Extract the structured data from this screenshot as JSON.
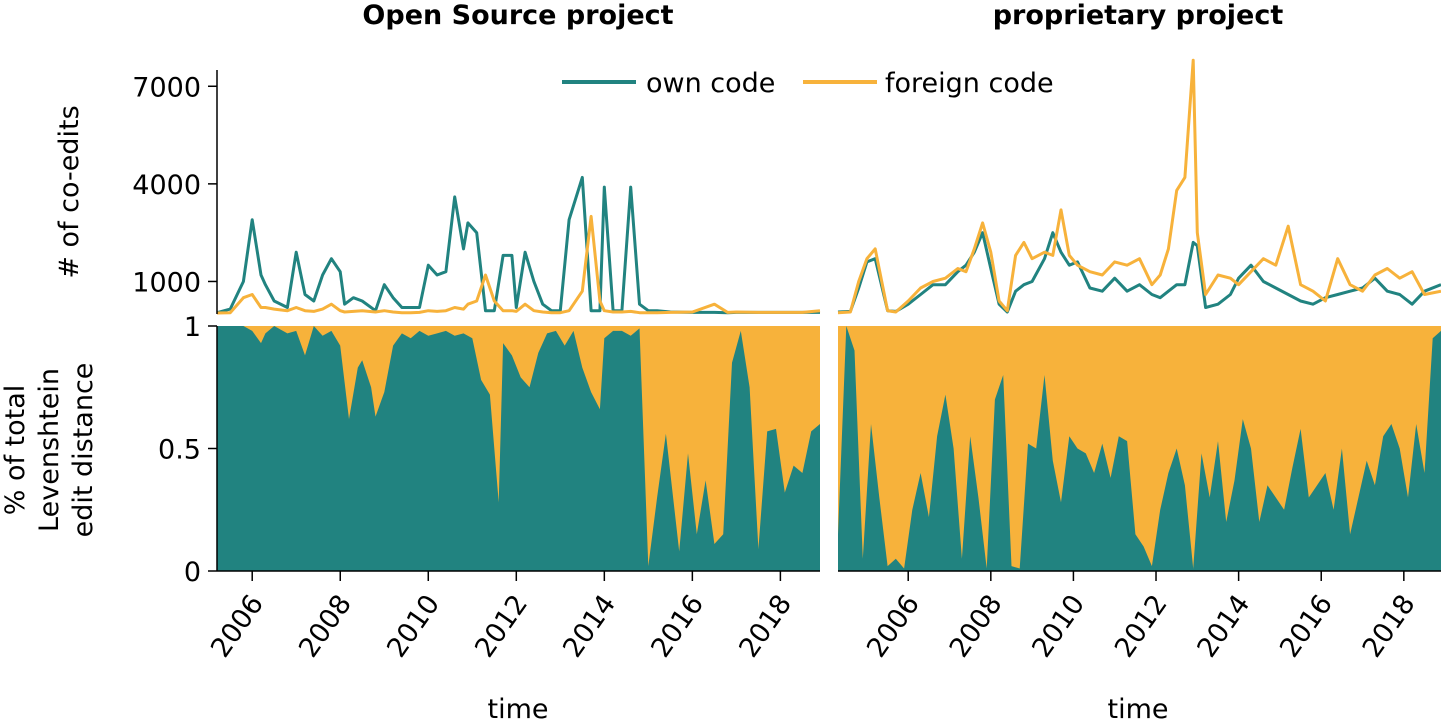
{
  "colors": {
    "own": "#218380",
    "foreign": "#f7b23b"
  },
  "legend": {
    "own_label": "own code",
    "foreign_label": "foreign code"
  },
  "x_axis_label": "time",
  "top_ylabel": "# of co-edits",
  "bottom_ylabel_lines": [
    "% of total",
    "Levenshtein",
    "edit distance"
  ],
  "chart_data": [
    {
      "type": "line",
      "title": "Open Source project",
      "xlabel": "time",
      "ylabel": "# of co-edits",
      "ylim": [
        0,
        7500
      ],
      "yticks": [
        1000,
        4000,
        7000
      ],
      "xlim": [
        2005.2,
        2018.9
      ],
      "xticks": [
        2006,
        2008,
        2010,
        2012,
        2014,
        2016,
        2018
      ],
      "x": [
        2005.2,
        2005.5,
        2005.8,
        2006.0,
        2006.2,
        2006.3,
        2006.5,
        2006.8,
        2007.0,
        2007.2,
        2007.4,
        2007.6,
        2007.8,
        2008.0,
        2008.1,
        2008.3,
        2008.5,
        2008.8,
        2009.0,
        2009.2,
        2009.4,
        2009.6,
        2009.8,
        2010.0,
        2010.2,
        2010.4,
        2010.6,
        2010.8,
        2010.9,
        2011.1,
        2011.3,
        2011.5,
        2011.7,
        2011.9,
        2012.0,
        2012.2,
        2012.4,
        2012.6,
        2012.8,
        2013.0,
        2013.2,
        2013.5,
        2013.7,
        2013.9,
        2014.0,
        2014.2,
        2014.4,
        2014.6,
        2014.8,
        2015.0,
        2015.2,
        2015.5,
        2016.0,
        2016.5,
        2016.8,
        2017.0,
        2017.5,
        2018.0,
        2018.5,
        2018.9
      ],
      "series": [
        {
          "name": "own code",
          "values": [
            40,
            150,
            1000,
            2900,
            1200,
            900,
            400,
            200,
            1900,
            600,
            400,
            1200,
            1700,
            1300,
            300,
            500,
            400,
            100,
            900,
            500,
            200,
            200,
            200,
            1500,
            1200,
            1300,
            3600,
            2000,
            2800,
            2500,
            100,
            100,
            1800,
            1800,
            200,
            1900,
            1000,
            300,
            100,
            100,
            2900,
            4200,
            100,
            100,
            3900,
            100,
            100,
            3900,
            300,
            100,
            100,
            60,
            50,
            50,
            40,
            50,
            50,
            50,
            50,
            50
          ]
        },
        {
          "name": "foreign code",
          "values": [
            30,
            40,
            500,
            600,
            200,
            200,
            150,
            100,
            200,
            100,
            80,
            150,
            300,
            100,
            60,
            80,
            100,
            60,
            100,
            60,
            40,
            40,
            50,
            100,
            80,
            100,
            200,
            150,
            300,
            400,
            1200,
            400,
            100,
            100,
            80,
            300,
            100,
            60,
            40,
            40,
            100,
            700,
            3000,
            400,
            100,
            60,
            60,
            80,
            40,
            40,
            40,
            50,
            60,
            300,
            50,
            60,
            50,
            50,
            50,
            100
          ]
        }
      ]
    },
    {
      "type": "line",
      "title": "proprietary project",
      "xlabel": "time",
      "ylabel": "# of co-edits",
      "ylim": [
        0,
        7500
      ],
      "yticks": [
        1000,
        4000,
        7000
      ],
      "xlim": [
        2004.3,
        2018.9
      ],
      "xticks": [
        2006,
        2008,
        2010,
        2012,
        2014,
        2016,
        2018
      ],
      "x": [
        2004.3,
        2004.6,
        2004.8,
        2005.0,
        2005.2,
        2005.5,
        2005.7,
        2006.0,
        2006.3,
        2006.6,
        2006.9,
        2007.2,
        2007.4,
        2007.6,
        2007.8,
        2008.0,
        2008.2,
        2008.4,
        2008.6,
        2008.8,
        2009.0,
        2009.3,
        2009.5,
        2009.7,
        2009.9,
        2010.1,
        2010.4,
        2010.7,
        2011.0,
        2011.3,
        2011.6,
        2011.9,
        2012.1,
        2012.3,
        2012.5,
        2012.7,
        2012.9,
        2013.0,
        2013.2,
        2013.5,
        2013.8,
        2014.0,
        2014.3,
        2014.6,
        2014.9,
        2015.2,
        2015.5,
        2015.8,
        2016.1,
        2016.4,
        2016.7,
        2017.0,
        2017.3,
        2017.6,
        2017.9,
        2018.2,
        2018.5,
        2018.9
      ],
      "series": [
        {
          "name": "own code",
          "values": [
            60,
            80,
            800,
            1600,
            1700,
            100,
            80,
            300,
            600,
            900,
            900,
            1300,
            1500,
            1900,
            2500,
            1400,
            300,
            60,
            700,
            900,
            1000,
            1700,
            2500,
            1900,
            1500,
            1600,
            800,
            700,
            1100,
            700,
            900,
            600,
            500,
            700,
            900,
            900,
            2200,
            2100,
            200,
            300,
            600,
            1100,
            1500,
            1000,
            800,
            600,
            400,
            300,
            500,
            600,
            700,
            800,
            1100,
            700,
            600,
            300,
            700,
            900
          ]
        },
        {
          "name": "foreign code",
          "values": [
            40,
            60,
            1000,
            1700,
            2000,
            100,
            60,
            400,
            800,
            1000,
            1100,
            1400,
            1300,
            2000,
            2800,
            1900,
            400,
            100,
            1800,
            2200,
            1700,
            1900,
            1800,
            3200,
            1800,
            1500,
            1300,
            1200,
            1600,
            1500,
            1700,
            900,
            1200,
            2000,
            3800,
            4200,
            7800,
            2500,
            600,
            1200,
            1100,
            900,
            1300,
            1700,
            1500,
            2700,
            900,
            700,
            400,
            1700,
            900,
            700,
            1200,
            1400,
            1100,
            1300,
            600,
            700
          ]
        }
      ]
    },
    {
      "type": "area",
      "title": "",
      "xlabel": "time",
      "ylabel": "% of total Levenshtein edit distance",
      "ylim": [
        0,
        1
      ],
      "yticks": [
        0,
        0.5,
        1
      ],
      "xlim": [
        2005.2,
        2018.9
      ],
      "xticks": [
        2006,
        2008,
        2010,
        2012,
        2014,
        2016,
        2018
      ],
      "stacked": true,
      "x": [
        2005.2,
        2005.5,
        2005.8,
        2006.0,
        2006.2,
        2006.3,
        2006.5,
        2006.8,
        2007.0,
        2007.2,
        2007.4,
        2007.6,
        2007.8,
        2008.0,
        2008.2,
        2008.4,
        2008.5,
        2008.7,
        2008.8,
        2009.0,
        2009.2,
        2009.4,
        2009.6,
        2009.8,
        2010.0,
        2010.2,
        2010.4,
        2010.6,
        2010.8,
        2011.0,
        2011.2,
        2011.4,
        2011.6,
        2011.7,
        2011.9,
        2012.1,
        2012.3,
        2012.5,
        2012.7,
        2012.9,
        2013.1,
        2013.3,
        2013.5,
        2013.7,
        2013.9,
        2014.0,
        2014.2,
        2014.4,
        2014.6,
        2014.8,
        2015.0,
        2015.2,
        2015.4,
        2015.7,
        2015.9,
        2016.1,
        2016.3,
        2016.5,
        2016.7,
        2016.9,
        2017.1,
        2017.3,
        2017.5,
        2017.7,
        2017.9,
        2018.1,
        2018.3,
        2018.5,
        2018.7,
        2018.9
      ],
      "series": [
        {
          "name": "own code",
          "values": [
            1,
            1,
            1,
            0.98,
            0.93,
            0.97,
            1,
            0.97,
            0.98,
            0.88,
            1,
            0.96,
            0.98,
            0.92,
            0.62,
            0.83,
            0.86,
            0.75,
            0.63,
            0.73,
            0.92,
            0.97,
            0.95,
            0.98,
            0.96,
            0.97,
            0.98,
            0.96,
            0.97,
            0.95,
            0.78,
            0.72,
            0.28,
            0.93,
            0.88,
            0.79,
            0.75,
            0.89,
            0.97,
            0.98,
            0.92,
            0.98,
            0.83,
            0.73,
            0.66,
            0.95,
            0.98,
            0.98,
            0.96,
            0.99,
            0.02,
            0.3,
            0.56,
            0.08,
            0.48,
            0.15,
            0.37,
            0.11,
            0.15,
            0.85,
            0.98,
            0.75,
            0.09,
            0.57,
            0.58,
            0.32,
            0.43,
            0.4,
            0.57,
            0.6
          ]
        },
        {
          "name": "foreign code",
          "values": [
            0,
            0,
            0,
            0.02,
            0.07,
            0.03,
            0,
            0.03,
            0.02,
            0.12,
            0,
            0.04,
            0.02,
            0.08,
            0.38,
            0.17,
            0.14,
            0.25,
            0.37,
            0.27,
            0.08,
            0.03,
            0.05,
            0.02,
            0.04,
            0.03,
            0.02,
            0.04,
            0.03,
            0.05,
            0.22,
            0.28,
            0.72,
            0.07,
            0.12,
            0.21,
            0.25,
            0.11,
            0.03,
            0.02,
            0.08,
            0.02,
            0.17,
            0.27,
            0.34,
            0.05,
            0.02,
            0.02,
            0.04,
            0.01,
            0.98,
            0.7,
            0.44,
            0.92,
            0.52,
            0.85,
            0.63,
            0.89,
            0.85,
            0.15,
            0.02,
            0.25,
            0.91,
            0.43,
            0.42,
            0.68,
            0.57,
            0.6,
            0.43,
            0.4
          ]
        }
      ]
    },
    {
      "type": "area",
      "title": "",
      "xlabel": "time",
      "ylabel": "% of total Levenshtein edit distance",
      "ylim": [
        0,
        1
      ],
      "yticks": [
        0,
        0.5,
        1
      ],
      "xlim": [
        2004.3,
        2018.9
      ],
      "xticks": [
        2006,
        2008,
        2010,
        2012,
        2014,
        2016,
        2018
      ],
      "stacked": true,
      "x": [
        2004.3,
        2004.5,
        2004.7,
        2004.9,
        2005.1,
        2005.3,
        2005.5,
        2005.7,
        2005.9,
        2006.1,
        2006.3,
        2006.5,
        2006.7,
        2006.9,
        2007.1,
        2007.3,
        2007.5,
        2007.7,
        2007.9,
        2008.1,
        2008.3,
        2008.5,
        2008.7,
        2008.9,
        2009.1,
        2009.3,
        2009.5,
        2009.7,
        2009.9,
        2010.1,
        2010.3,
        2010.5,
        2010.7,
        2010.9,
        2011.1,
        2011.3,
        2011.5,
        2011.7,
        2011.9,
        2012.1,
        2012.3,
        2012.5,
        2012.7,
        2012.9,
        2013.1,
        2013.3,
        2013.5,
        2013.7,
        2013.9,
        2014.1,
        2014.3,
        2014.5,
        2014.7,
        2014.9,
        2015.1,
        2015.3,
        2015.5,
        2015.7,
        2015.9,
        2016.1,
        2016.3,
        2016.5,
        2016.7,
        2016.9,
        2017.1,
        2017.3,
        2017.5,
        2017.7,
        2017.9,
        2018.1,
        2018.3,
        2018.5,
        2018.7,
        2018.9
      ],
      "series": [
        {
          "name": "own code",
          "values": [
            0.15,
            1,
            0.9,
            0.05,
            0.6,
            0.3,
            0.02,
            0.05,
            0.01,
            0.25,
            0.4,
            0.22,
            0.55,
            0.72,
            0.5,
            0.05,
            0.55,
            0.3,
            0.01,
            0.7,
            0.8,
            0.02,
            0.01,
            0.52,
            0.5,
            0.8,
            0.45,
            0.28,
            0.55,
            0.5,
            0.48,
            0.4,
            0.52,
            0.38,
            0.55,
            0.53,
            0.15,
            0.1,
            0.02,
            0.25,
            0.4,
            0.5,
            0.35,
            0.01,
            0.48,
            0.3,
            0.53,
            0.2,
            0.37,
            0.62,
            0.5,
            0.2,
            0.35,
            0.3,
            0.25,
            0.42,
            0.58,
            0.3,
            0.35,
            0.4,
            0.25,
            0.5,
            0.15,
            0.3,
            0.45,
            0.35,
            0.55,
            0.6,
            0.5,
            0.3,
            0.6,
            0.4,
            0.95,
            0.98
          ]
        },
        {
          "name": "foreign code",
          "values": [
            0.85,
            0,
            0.1,
            0.95,
            0.4,
            0.7,
            0.98,
            0.95,
            0.99,
            0.75,
            0.6,
            0.78,
            0.45,
            0.28,
            0.5,
            0.95,
            0.45,
            0.7,
            0.99,
            0.3,
            0.2,
            0.98,
            0.99,
            0.48,
            0.5,
            0.2,
            0.55,
            0.72,
            0.45,
            0.5,
            0.52,
            0.6,
            0.48,
            0.62,
            0.45,
            0.47,
            0.85,
            0.9,
            0.98,
            0.75,
            0.6,
            0.5,
            0.65,
            0.99,
            0.52,
            0.7,
            0.47,
            0.8,
            0.63,
            0.38,
            0.5,
            0.8,
            0.65,
            0.7,
            0.75,
            0.58,
            0.42,
            0.7,
            0.65,
            0.6,
            0.75,
            0.5,
            0.85,
            0.7,
            0.55,
            0.65,
            0.45,
            0.4,
            0.5,
            0.7,
            0.4,
            0.6,
            0.05,
            0.02
          ]
        }
      ]
    }
  ]
}
